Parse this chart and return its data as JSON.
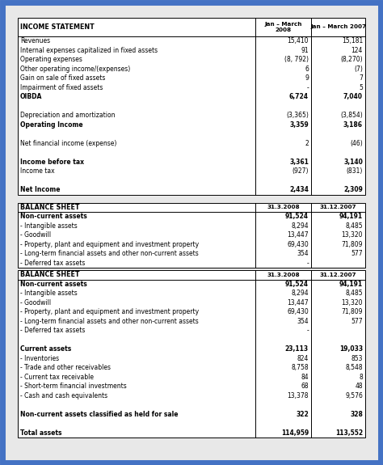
{
  "bg_color": "#e8e8e8",
  "border_color": "#4472c4",
  "income_statement": {
    "title": "INCOME STATEMENT",
    "col1": "Jan – March\n2008",
    "col2": "Jan – March 2007",
    "rows": [
      {
        "label": "Revenues",
        "v1": "15,410",
        "v2": "15,181",
        "bold": false
      },
      {
        "label": "Internal expenses capitalized in fixed assets",
        "v1": "91",
        "v2": "124",
        "bold": false
      },
      {
        "label": "Operating expenses",
        "v1": "(8, 792)",
        "v2": "(8,270)",
        "bold": false
      },
      {
        "label": "Other operating income/(expenses)",
        "v1": "6",
        "v2": "(7)",
        "bold": false
      },
      {
        "label": "Gain on sale of fixed assets",
        "v1": "9",
        "v2": "7",
        "bold": false
      },
      {
        "label": "Impairment of fixed assets",
        "v1": "-",
        "v2": "5",
        "bold": false
      },
      {
        "label": "OIBDA",
        "v1": "6,724",
        "v2": "7,040",
        "bold": true
      },
      {
        "label": "",
        "v1": "",
        "v2": "",
        "bold": false
      },
      {
        "label": "Depreciation and amortization",
        "v1": "(3,365)",
        "v2": "(3,854)",
        "bold": false
      },
      {
        "label": "Operating Income",
        "v1": "3,359",
        "v2": "3,186",
        "bold": true
      },
      {
        "label": "",
        "v1": "",
        "v2": "",
        "bold": false
      },
      {
        "label": "Net financial income (expense)",
        "v1": "2",
        "v2": "(46)",
        "bold": false
      },
      {
        "label": "",
        "v1": "",
        "v2": "",
        "bold": false
      },
      {
        "label": "Income before tax",
        "v1": "3,361",
        "v2": "3,140",
        "bold": true
      },
      {
        "label": "Income tax",
        "v1": "(927)",
        "v2": "(831)",
        "bold": false
      },
      {
        "label": "",
        "v1": "",
        "v2": "",
        "bold": false
      },
      {
        "label": "Net Income",
        "v1": "2,434",
        "v2": "2,309",
        "bold": true
      }
    ]
  },
  "balance_sheet1": {
    "title": "BALANCE SHEET",
    "col1": "31.3.2008",
    "col2": "31.12.2007",
    "rows": [
      {
        "label": "Non-current assets",
        "v1": "91,524",
        "v2": "94,191",
        "bold": true
      },
      {
        "label": "- Intangible assets",
        "v1": "8,294",
        "v2": "8,485",
        "bold": false
      },
      {
        "label": "- Goodwill",
        "v1": "13,447",
        "v2": "13,320",
        "bold": false
      },
      {
        "label": "- Property, plant and equipment and investment property",
        "v1": "69,430",
        "v2": "71,809",
        "bold": false
      },
      {
        "label": "- Long-term financial assets and other non-current assets",
        "v1": "354",
        "v2": "577",
        "bold": false
      },
      {
        "label": "- Deferred tax assets",
        "v1": "-",
        "v2": "",
        "bold": false
      }
    ]
  },
  "balance_sheet2": {
    "title": "BALANCE SHEET",
    "col1": "31.3.2008",
    "col2": "31.12.2007",
    "rows": [
      {
        "label": "Non-current assets",
        "v1": "91,524",
        "v2": "94,191",
        "bold": true
      },
      {
        "label": "- Intangible assets",
        "v1": "8,294",
        "v2": "8,485",
        "bold": false
      },
      {
        "label": "- Goodwill",
        "v1": "13,447",
        "v2": "13,320",
        "bold": false
      },
      {
        "label": "- Property, plant and equipment and investment property",
        "v1": "69,430",
        "v2": "71,809",
        "bold": false
      },
      {
        "label": "- Long-term financial assets and other non-current assets",
        "v1": "354",
        "v2": "577",
        "bold": false
      },
      {
        "label": "- Deferred tax assets",
        "v1": "-",
        "v2": "",
        "bold": false
      },
      {
        "label": "",
        "v1": "",
        "v2": "",
        "bold": false
      },
      {
        "label": "Current assets",
        "v1": "23,113",
        "v2": "19,033",
        "bold": true
      },
      {
        "label": "- Inventories",
        "v1": "824",
        "v2": "853",
        "bold": false
      },
      {
        "label": "- Trade and other receivables",
        "v1": "8,758",
        "v2": "8,548",
        "bold": false
      },
      {
        "label": "- Current tax receivable",
        "v1": "84",
        "v2": "8",
        "bold": false
      },
      {
        "label": "- Short-term financial investments",
        "v1": "68",
        "v2": "48",
        "bold": false
      },
      {
        "label": "- Cash and cash equivalents",
        "v1": "13,378",
        "v2": "9,576",
        "bold": false
      },
      {
        "label": "",
        "v1": "",
        "v2": "",
        "bold": false
      },
      {
        "label": "Non-current assets classified as held for sale",
        "v1": "322",
        "v2": "328",
        "bold": true
      },
      {
        "label": "",
        "v1": "",
        "v2": "",
        "bold": false
      },
      {
        "label": "Total assets",
        "v1": "114,959",
        "v2": "113,552",
        "bold": true
      }
    ]
  },
  "figsize": [
    4.74,
    5.75
  ],
  "dpi": 100
}
